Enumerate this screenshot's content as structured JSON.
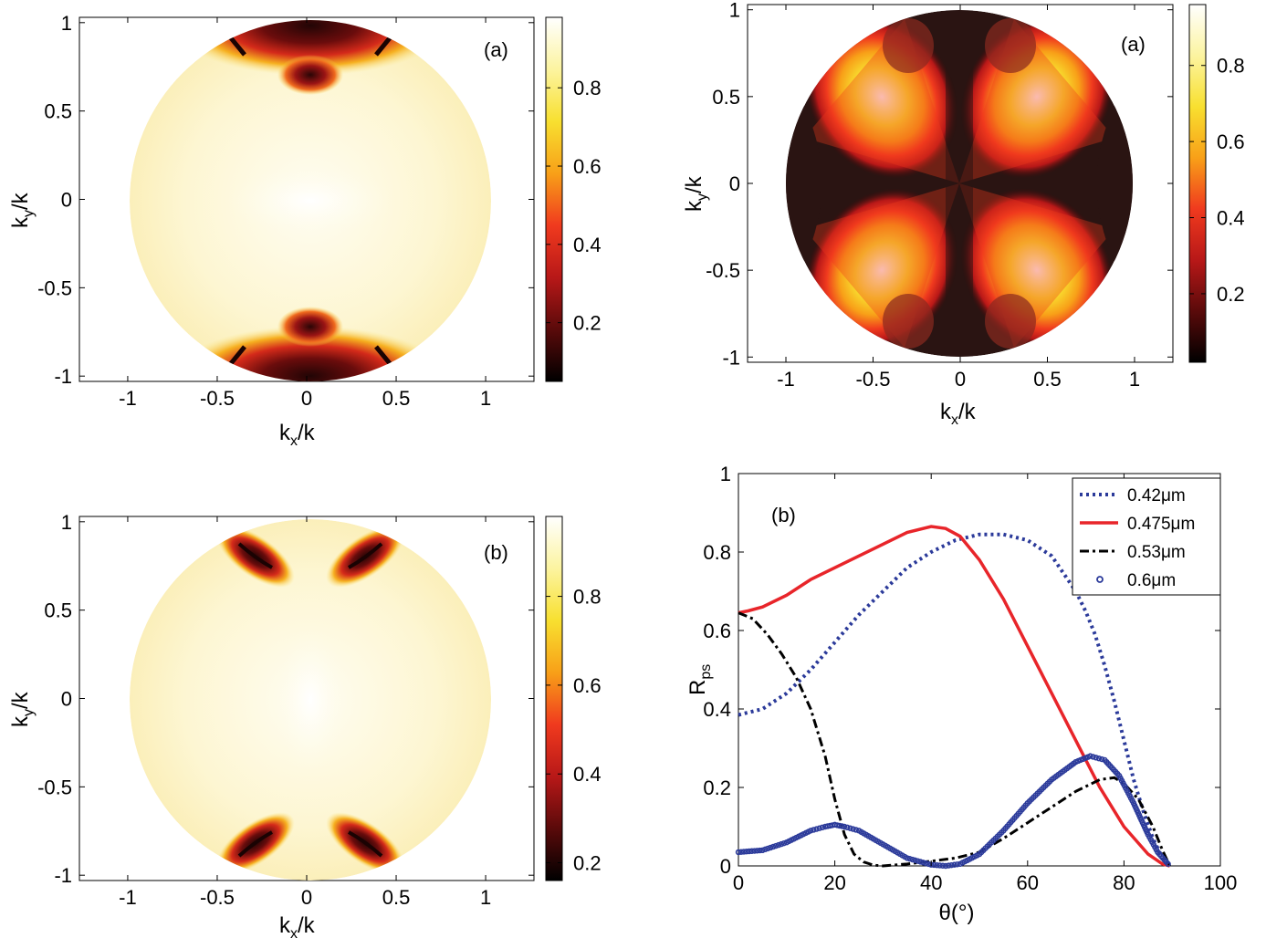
{
  "colormap": [
    "#000000",
    "#5a0a0a",
    "#b81818",
    "#f03a1e",
    "#f8a018",
    "#f8e030",
    "#fcf4a0",
    "#ffffff"
  ],
  "chart_data": [
    {
      "type": "heatmap",
      "panel_label": "(a)",
      "xlabel": "k",
      "xlabel_sub": "x",
      "xlabel_suffix": "/k",
      "ylabel": "k",
      "ylabel_sub": "y",
      "ylabel_suffix": "/k",
      "xlim": [
        -1.27,
        1.27
      ],
      "ylim": [
        -1.03,
        1.03
      ],
      "xticks": [
        "-1",
        "-0.5",
        "0",
        "0.5",
        "1"
      ],
      "yticks": [
        "-1",
        "-0.5",
        "0",
        "0.5",
        "1"
      ],
      "colorbar_ticks": [
        "0.2",
        "0.4",
        "0.6",
        "0.8"
      ],
      "colorbar_range": [
        0.05,
        0.98
      ]
    },
    {
      "type": "heatmap",
      "panel_label": "(a)",
      "xlabel": "k",
      "xlabel_sub": "x",
      "xlabel_suffix": "/k",
      "ylabel": "k",
      "ylabel_sub": "y",
      "ylabel_suffix": "/k",
      "xlim": [
        -1.22,
        1.22
      ],
      "ylim": [
        -1.03,
        1.03
      ],
      "xticks": [
        "-1",
        "-0.5",
        "0",
        "0.5",
        "1"
      ],
      "yticks": [
        "-1",
        "-0.5",
        "0",
        "0.5",
        "1"
      ],
      "colorbar_ticks": [
        "0.2",
        "0.4",
        "0.6",
        "0.8"
      ],
      "colorbar_range": [
        0.02,
        0.96
      ]
    },
    {
      "type": "heatmap",
      "panel_label": "(b)",
      "xlabel": "k",
      "xlabel_sub": "x",
      "xlabel_suffix": "/k",
      "ylabel": "k",
      "ylabel_sub": "y",
      "ylabel_suffix": "/k",
      "xlim": [
        -1.27,
        1.27
      ],
      "ylim": [
        -1.03,
        1.03
      ],
      "xticks": [
        "-1",
        "-0.5",
        "0",
        "0.5",
        "1"
      ],
      "yticks": [
        "-1",
        "-0.5",
        "0",
        "0.5",
        "1"
      ],
      "colorbar_ticks": [
        "0.2",
        "0.4",
        "0.6",
        "0.8"
      ],
      "colorbar_range": [
        0.16,
        0.98
      ]
    },
    {
      "type": "line",
      "panel_label": "(b)",
      "xlabel": "θ(°)",
      "ylabel": "R",
      "ylabel_sub": "ps",
      "xlim": [
        0,
        100
      ],
      "ylim": [
        0,
        1
      ],
      "xticks": [
        "0",
        "20",
        "40",
        "60",
        "80",
        "100"
      ],
      "yticks": [
        "0",
        "0.2",
        "0.4",
        "0.6",
        "0.8",
        "1"
      ],
      "legend_position": "top-right",
      "series": [
        {
          "name": "0.42μm",
          "color": "#2b3a9a",
          "style": "dotted",
          "x": [
            0,
            5,
            10,
            15,
            20,
            25,
            30,
            35,
            40,
            45,
            50,
            55,
            60,
            65,
            70,
            72,
            74,
            76,
            78,
            80,
            82,
            84,
            86,
            88,
            89.5
          ],
          "y": [
            0.385,
            0.4,
            0.44,
            0.5,
            0.57,
            0.64,
            0.7,
            0.76,
            0.8,
            0.83,
            0.845,
            0.845,
            0.83,
            0.79,
            0.7,
            0.65,
            0.59,
            0.51,
            0.42,
            0.32,
            0.22,
            0.14,
            0.07,
            0.02,
            0.0
          ]
        },
        {
          "name": "0.475μm",
          "color": "#e8252a",
          "style": "solid",
          "x": [
            0,
            2,
            5,
            10,
            15,
            20,
            25,
            30,
            35,
            40,
            43,
            46,
            50,
            55,
            60,
            65,
            70,
            75,
            80,
            85,
            88,
            89.5
          ],
          "y": [
            0.645,
            0.65,
            0.66,
            0.69,
            0.73,
            0.76,
            0.79,
            0.82,
            0.85,
            0.865,
            0.86,
            0.84,
            0.78,
            0.68,
            0.56,
            0.44,
            0.32,
            0.2,
            0.1,
            0.03,
            0.005,
            0.0
          ]
        },
        {
          "name": "0.53μm",
          "color": "#000000",
          "style": "dashdot",
          "x": [
            0,
            3,
            6,
            9,
            12,
            15,
            18,
            20,
            22,
            24,
            26,
            28,
            30,
            35,
            40,
            45,
            50,
            55,
            60,
            65,
            70,
            75,
            78,
            80,
            83,
            86,
            88,
            89.5
          ],
          "y": [
            0.645,
            0.63,
            0.59,
            0.54,
            0.48,
            0.4,
            0.28,
            0.17,
            0.08,
            0.03,
            0.01,
            0.002,
            0.0,
            0.005,
            0.012,
            0.02,
            0.035,
            0.07,
            0.11,
            0.15,
            0.19,
            0.22,
            0.225,
            0.21,
            0.17,
            0.1,
            0.04,
            0.0
          ]
        },
        {
          "name": "0.6μm",
          "color": "#2b3a9a",
          "style": "circles",
          "x": [
            0,
            5,
            10,
            15,
            18,
            20,
            22,
            25,
            30,
            35,
            40,
            43,
            46,
            50,
            55,
            60,
            65,
            70,
            73,
            76,
            79,
            82,
            85,
            87,
            89.5
          ],
          "y": [
            0.035,
            0.04,
            0.06,
            0.09,
            0.1,
            0.105,
            0.1,
            0.09,
            0.055,
            0.02,
            0.003,
            0.0,
            0.005,
            0.03,
            0.09,
            0.16,
            0.22,
            0.265,
            0.28,
            0.27,
            0.23,
            0.16,
            0.08,
            0.035,
            0.0
          ]
        }
      ]
    }
  ]
}
